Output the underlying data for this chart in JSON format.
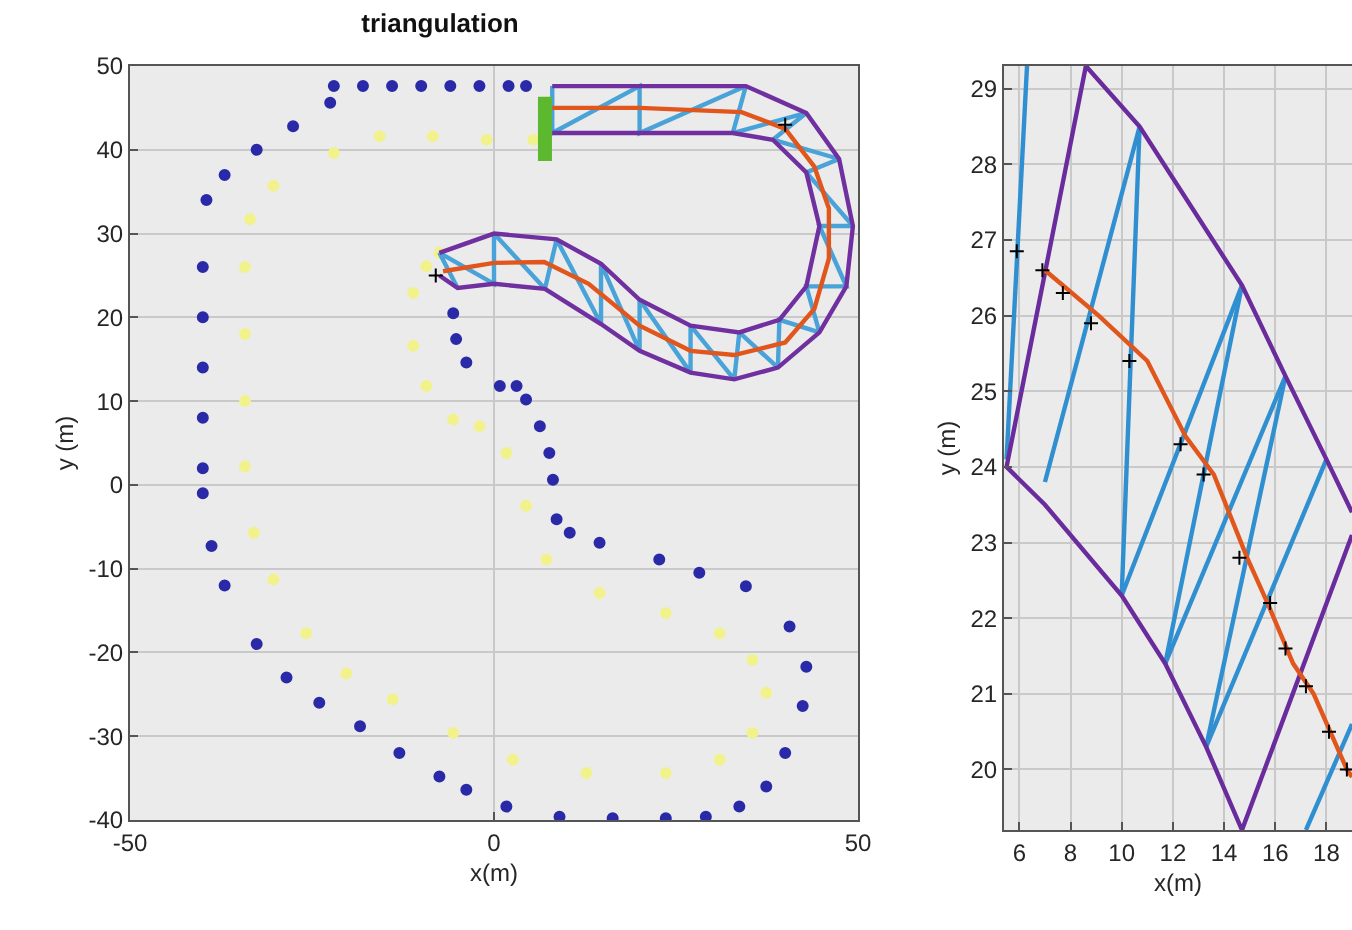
{
  "chart_data": [
    {
      "type": "scatter",
      "title": "triangulation",
      "xlabel": "x(m)",
      "ylabel": "y (m)",
      "xlim": [
        -50,
        50
      ],
      "xticks": [
        -50,
        0,
        50
      ],
      "ylim": [
        -40,
        50
      ],
      "yticks": [
        -40,
        -30,
        -20,
        -10,
        0,
        10,
        20,
        30,
        40,
        50
      ],
      "grid": true,
      "series": [
        {
          "type": "scatter",
          "marker": "circle",
          "color": "#2a2aa8",
          "x": [
            -22,
            -18,
            -14,
            -10,
            -6,
            -2,
            2,
            4.4,
            -22.5,
            -27.6,
            -32.6,
            -37,
            -39.5,
            -40,
            -40,
            -40,
            -40,
            -40,
            -40,
            -38.8,
            -37,
            -32.6,
            -28.5,
            -24,
            -18.4,
            -13,
            -7.5,
            -3.8,
            1.7,
            9,
            16.3,
            23.6,
            29.1,
            33.7,
            37.4,
            40,
            42.4,
            42.9,
            40.6,
            34.6,
            28.2,
            22.7,
            14.5,
            10.4,
            8.6,
            8.1,
            7.6,
            6.3,
            4.4,
            3.1,
            0.8,
            -3.8,
            -5.2,
            -5.6
          ],
          "values": [
            47.6,
            47.6,
            47.6,
            47.6,
            47.6,
            47.6,
            47.6,
            47.6,
            45.6,
            42.8,
            40,
            37,
            34,
            26,
            20,
            14,
            8,
            2,
            -1,
            -7.3,
            -12,
            -19,
            -23,
            -26,
            -28.8,
            -32,
            -34.8,
            -36.4,
            -38.4,
            -39.6,
            -39.8,
            -39.8,
            -39.6,
            -38.4,
            -36,
            -32,
            -26.4,
            -21.7,
            -16.9,
            -12.1,
            -10.5,
            -8.9,
            -6.9,
            -5.7,
            -4.1,
            0.6,
            3.8,
            7,
            10.2,
            11.8,
            11.8,
            14.6,
            17.4,
            20.5
          ]
        },
        {
          "type": "scatter",
          "marker": "circle",
          "color": "#f2f28c",
          "x": [
            -22,
            -15.7,
            -8.4,
            -1,
            5.4,
            -30.3,
            -33.5,
            -34.2,
            -34.2,
            -34.2,
            -34.2,
            -33,
            -30.3,
            -25.8,
            -20.3,
            -13.9,
            -5.6,
            2.6,
            12.7,
            23.6,
            31,
            35.5,
            37.4,
            35.5,
            31,
            23.6,
            14.5,
            7.2,
            4.4,
            1.7,
            -2,
            -5.6,
            -9.3,
            -11.1,
            -11.1,
            -9.3,
            -7.5
          ],
          "values": [
            39.6,
            41.6,
            41.6,
            41.2,
            41.2,
            35.7,
            31.7,
            26,
            18,
            10,
            2.2,
            -5.7,
            -11.3,
            -17.7,
            -22.5,
            -25.6,
            -29.6,
            -32.8,
            -34.4,
            -34.4,
            -32.8,
            -29.6,
            -24.8,
            -20.9,
            -17.7,
            -15.3,
            -12.9,
            -8.9,
            -2.5,
            3.8,
            7,
            7.8,
            11.8,
            16.6,
            22.9,
            26.1,
            27.7
          ]
        },
        {
          "type": "line",
          "color": "#4aa3d8",
          "x": [
            -5,
            -7.5,
            0,
            0,
            7,
            8.6,
            14.7,
            14.7,
            20,
            20,
            27,
            27,
            33,
            33.7,
            39,
            39.2,
            44.7,
            42.9,
            48.4,
            44.7,
            49.3,
            42.9,
            47.4,
            38.3,
            42.9,
            32.8,
            34.6,
            20,
            20,
            8,
            8
          ],
          "values": [
            23.5,
            27.7,
            24,
            30,
            23.4,
            29.3,
            19.2,
            26.4,
            16,
            22.1,
            13.4,
            19,
            12.6,
            18.2,
            14,
            19.7,
            18.2,
            23.7,
            23.7,
            30.9,
            30.9,
            37.3,
            38.9,
            41.2,
            44.4,
            42,
            47.6,
            42,
            47.6,
            42,
            47.6
          ]
        },
        {
          "type": "line",
          "color": "#7030a0",
          "x": [
            -7.5,
            -5,
            0,
            7,
            14.7,
            20,
            27,
            33,
            39,
            44.7,
            48.4,
            49.3,
            47.4,
            42.9,
            34.6,
            20,
            8
          ],
          "values": [
            25,
            23.5,
            24,
            23.4,
            19.2,
            16,
            13.4,
            12.6,
            14,
            18.2,
            23.7,
            30.9,
            38.9,
            44.4,
            47.6,
            47.6,
            47.6
          ]
        },
        {
          "type": "line",
          "color": "#7030a0",
          "x": [
            -7.5,
            0,
            8.6,
            14.7,
            20,
            27,
            33.7,
            39.2,
            42.9,
            44.7,
            42.9,
            38.3,
            32.8,
            20,
            8
          ],
          "values": [
            27.7,
            30,
            29.3,
            26.4,
            22.1,
            19,
            18.2,
            19.7,
            23.7,
            30.9,
            37.3,
            41.2,
            42,
            42,
            42
          ]
        },
        {
          "type": "line",
          "color": "#e0561c",
          "x": [
            -7,
            0,
            6.9,
            13,
            20,
            27,
            33,
            40,
            44,
            46,
            46,
            44,
            40,
            34,
            20,
            8
          ],
          "values": [
            25.5,
            26.5,
            26.6,
            24,
            19,
            16,
            15.5,
            17,
            21,
            27,
            33,
            38,
            42.5,
            44.5,
            45,
            45
          ]
        },
        {
          "type": "scatter",
          "marker": "square",
          "color": "#5cb82e",
          "x": [
            7,
            7,
            7,
            7,
            7
          ],
          "values": [
            39.5,
            41,
            42.5,
            44,
            45.5
          ]
        },
        {
          "type": "scatter",
          "marker": "cross",
          "color": "#000000",
          "x": [
            -8,
            40
          ],
          "values": [
            25,
            43
          ]
        }
      ]
    },
    {
      "type": "scatter",
      "xlabel": "x(m)",
      "ylabel": "y (m)",
      "xlim": [
        5.4,
        19
      ],
      "xticks": [
        6,
        8,
        10,
        12,
        14,
        16,
        18
      ],
      "ylim": [
        19.2,
        29.3
      ],
      "yticks": [
        20,
        21,
        22,
        23,
        24,
        25,
        26,
        27,
        28,
        29
      ],
      "grid": true,
      "series": [
        {
          "type": "line",
          "color": "#2f8fd0",
          "x": [
            5.5,
            6.3,
            null,
            7,
            10.7,
            null,
            10,
            10.7,
            null,
            10,
            14.7,
            null,
            11.7,
            14.7,
            null,
            11.7,
            16.4,
            null,
            13.3,
            16.4,
            null,
            13.3,
            18,
            null,
            17.2,
            19
          ],
          "values": [
            24.1,
            29.3,
            null,
            23.8,
            28.5,
            null,
            22.3,
            28.5,
            null,
            22.3,
            26.4,
            null,
            21.4,
            26.4,
            null,
            21.4,
            25.2,
            null,
            20.3,
            25.2,
            null,
            20.3,
            24.1,
            null,
            19.2,
            20.6
          ]
        },
        {
          "type": "line",
          "color": "#6a2c9c",
          "x": [
            19,
            18,
            16.4,
            14.7,
            10.7,
            8.6,
            5.5,
            7,
            10,
            11.7,
            13.3,
            14.7,
            19
          ],
          "values": [
            23.4,
            24.1,
            25.2,
            26.4,
            28.5,
            29.3,
            24,
            23.5,
            22.3,
            21.4,
            20.3,
            19.2,
            23.1
          ]
        },
        {
          "type": "line",
          "color": "#e0561c",
          "x": [
            7,
            9.1,
            11,
            12.5,
            13.6,
            14.9,
            15.7,
            16.7,
            17.5,
            18.8,
            19
          ],
          "values": [
            26.6,
            26,
            25.4,
            24.4,
            23.9,
            22.8,
            22.2,
            21.4,
            21,
            20,
            19.9
          ]
        },
        {
          "type": "scatter",
          "marker": "cross",
          "color": "#000000",
          "x": [
            7.7,
            8.8,
            10.3,
            12.3,
            13.2,
            14.6,
            15.8,
            16.4,
            17.2,
            18.1,
            18.8
          ],
          "values": [
            26.3,
            25.9,
            25.4,
            24.3,
            23.9,
            22.8,
            22.2,
            21.6,
            21.1,
            20.5,
            20
          ]
        },
        {
          "type": "scatter",
          "marker": "cross",
          "color": "#000000",
          "x": [
            5.9,
            6.9
          ],
          "values": [
            26.85,
            26.6
          ]
        }
      ]
    }
  ]
}
